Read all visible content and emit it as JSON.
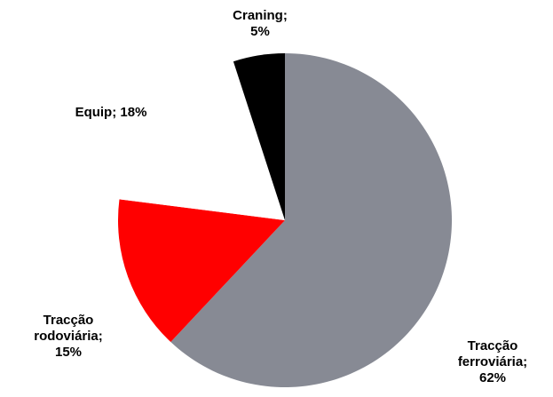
{
  "chart_data": {
    "type": "pie",
    "categories": [
      "Tracção ferroviária",
      "Tracção rodoviária",
      "Equip",
      "Craning"
    ],
    "values": [
      62,
      15,
      18,
      5
    ],
    "value_labels": [
      "Tracção ferroviária; 62%",
      "Tracção rodoviária; 15%",
      "Equip; 18%",
      "Craning; 5%"
    ],
    "colors": [
      "#878a94",
      "#ff0000",
      "#ffffff",
      "#000000"
    ]
  }
}
